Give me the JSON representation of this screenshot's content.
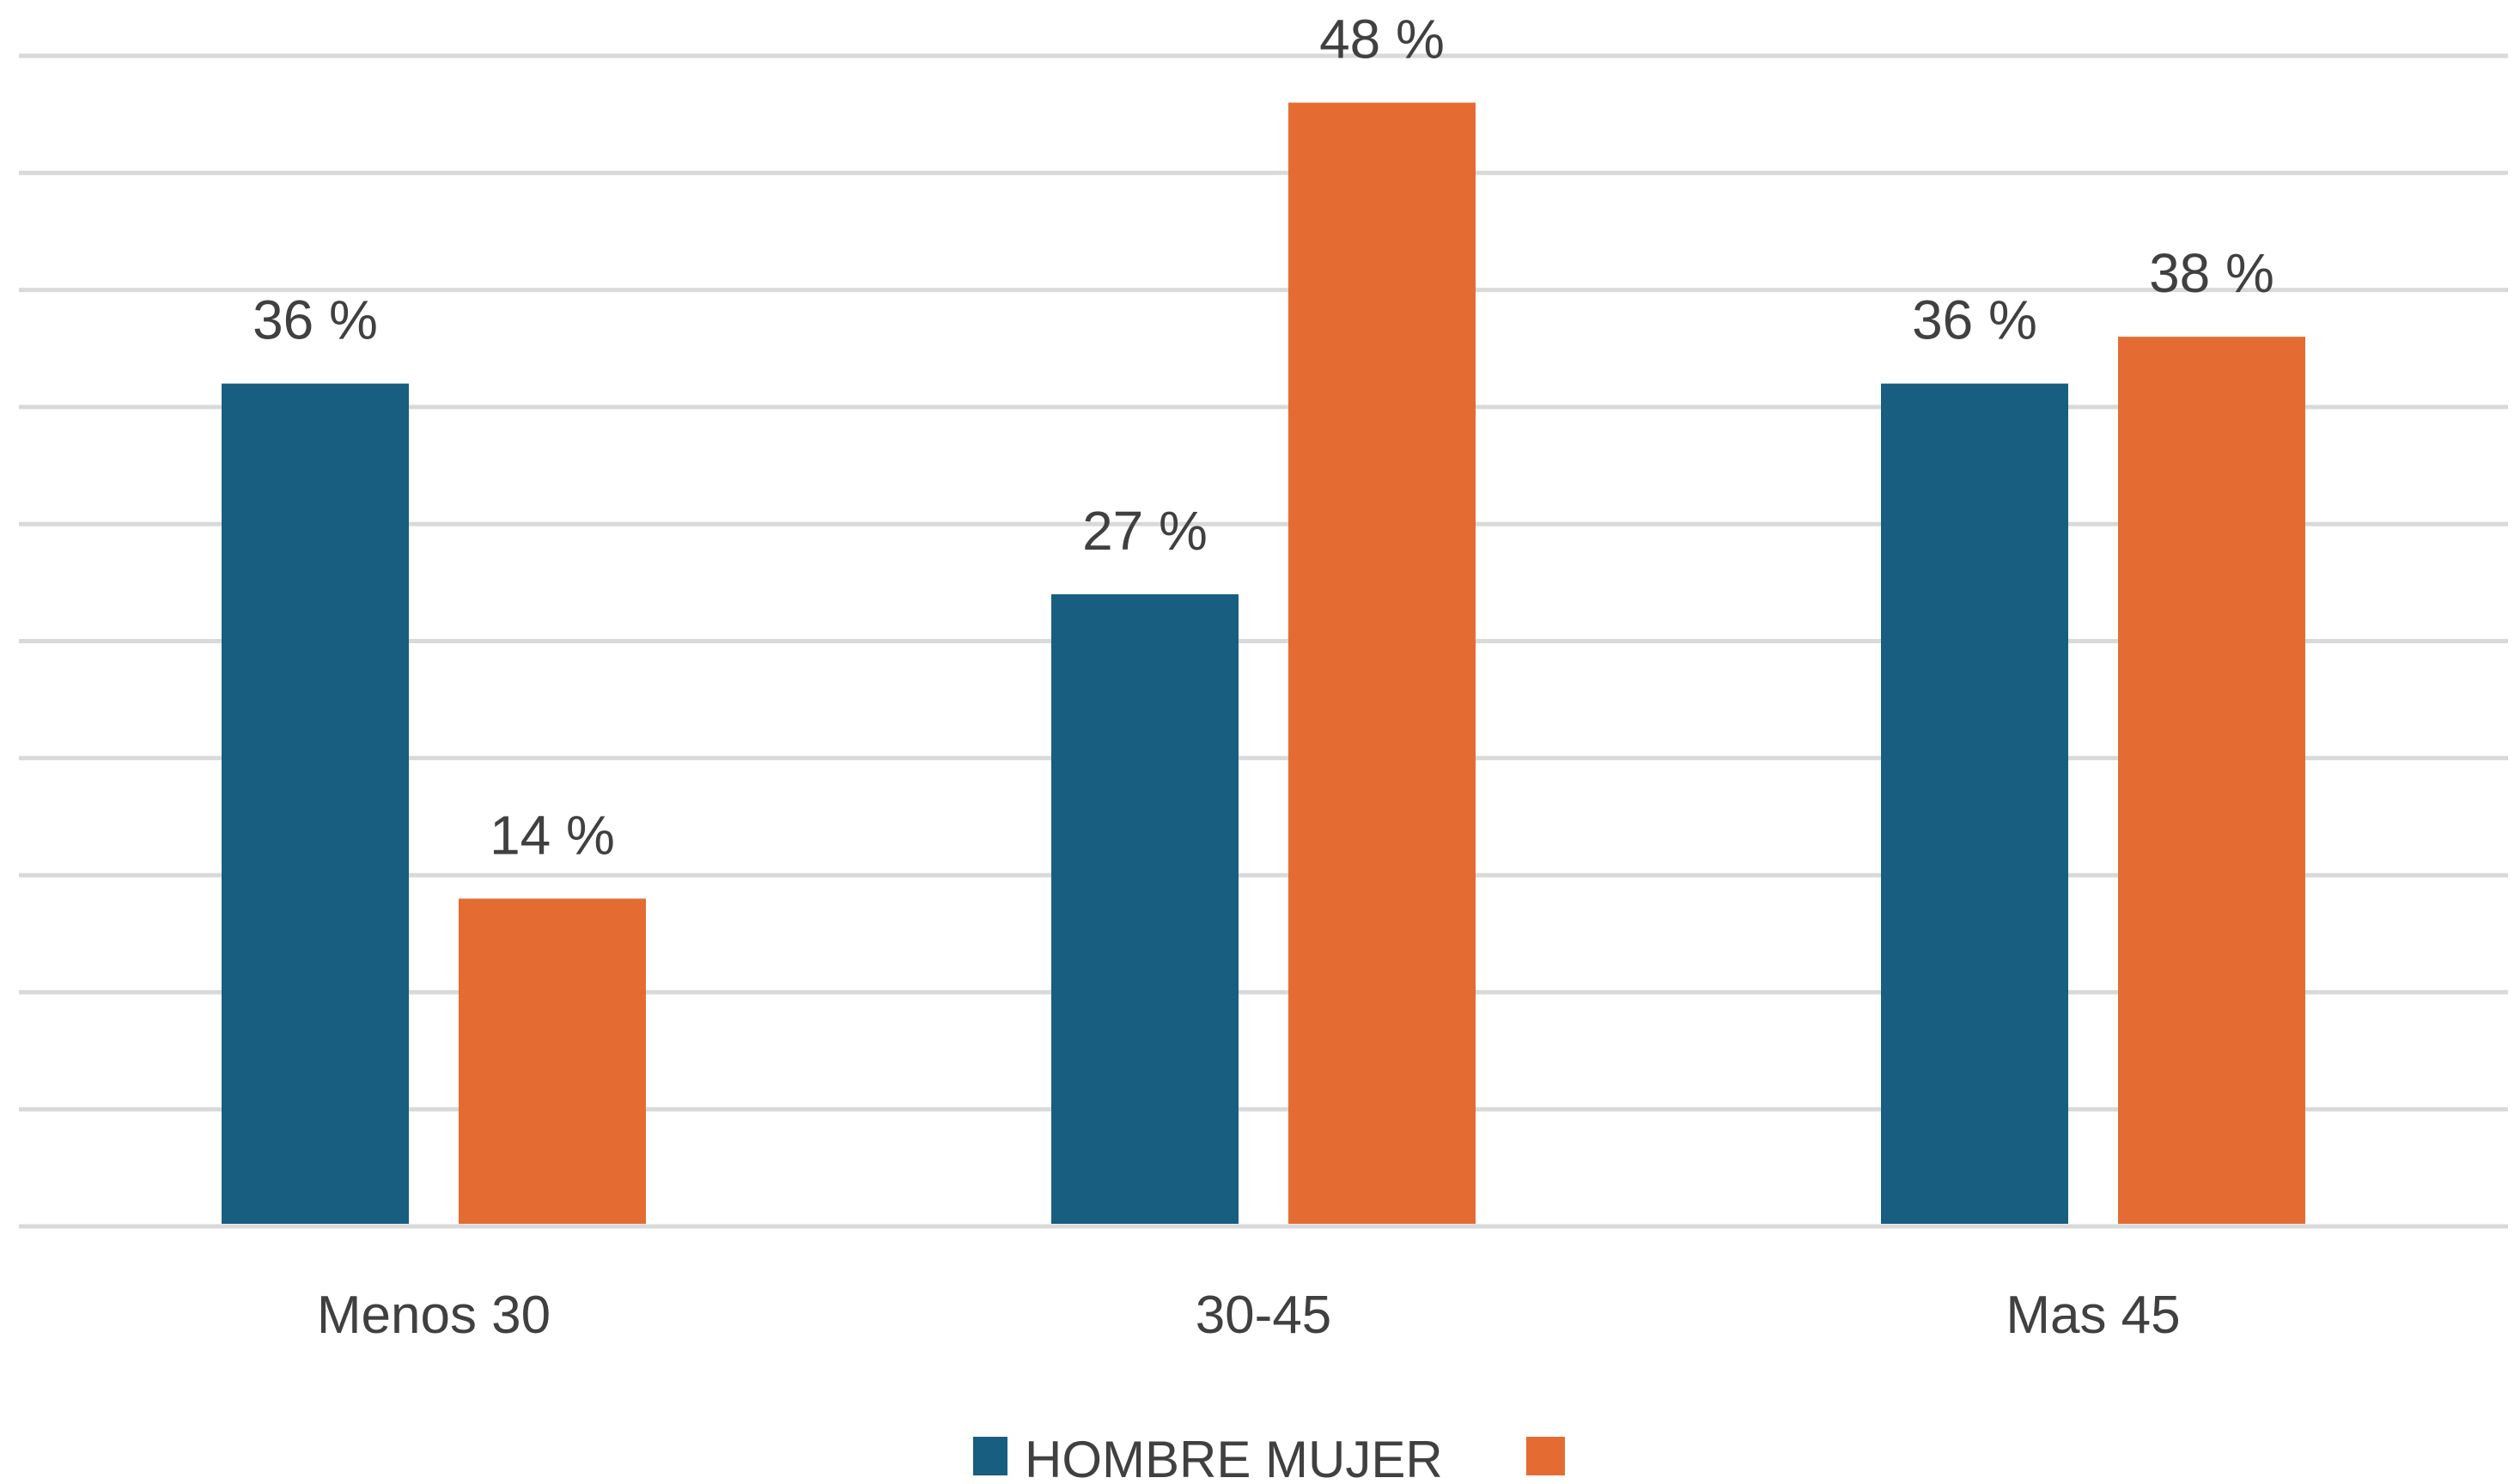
{
  "chart_data": {
    "type": "bar",
    "categories": [
      "Menos 30",
      "30-45",
      "Mas 45"
    ],
    "series": [
      {
        "name": "HOMBRE",
        "values": [
          36,
          27,
          36
        ],
        "labels": [
          "36 %",
          "27 %",
          "36 %"
        ],
        "color": "#175E80"
      },
      {
        "name": "MUJER",
        "values": [
          14,
          48,
          38
        ],
        "labels": [
          "14 %",
          "48 %",
          "38 %"
        ],
        "color": "#E46C33"
      }
    ],
    "ylim": [
      0,
      50
    ],
    "y_grid_step": 5,
    "grid": true,
    "gridline_color": "#D9D9D9",
    "legend": {
      "placement": "bottom",
      "text": "HOMBRE MUJER"
    }
  }
}
